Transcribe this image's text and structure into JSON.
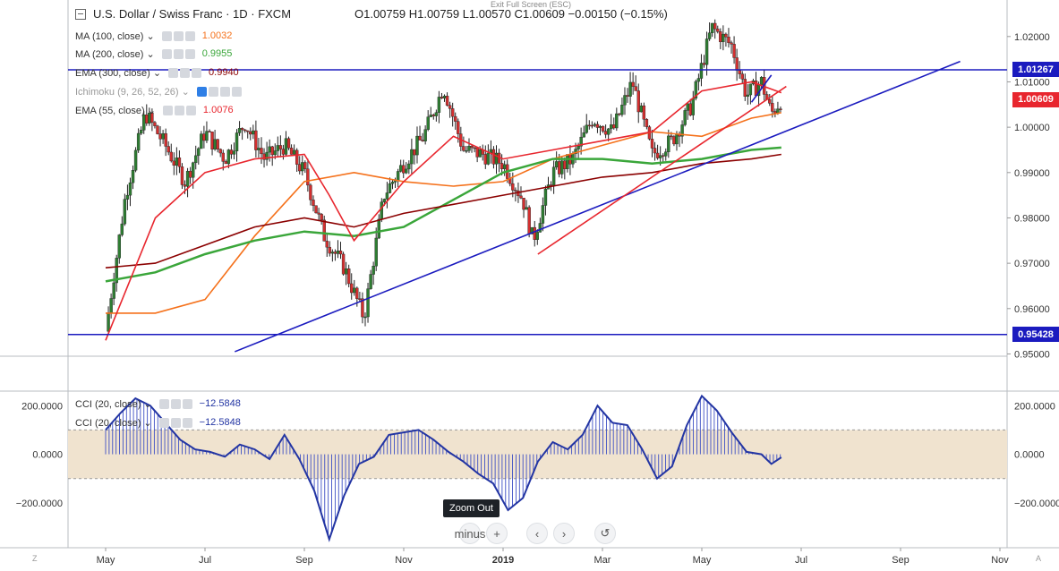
{
  "header": {
    "collapse_icon": "minus-box-icon",
    "symbol_title": "U.S. Dollar / Swiss Franc · 1D · FXCM",
    "ohlc": "O1.00759  H1.00759  L1.00570  C1.00609  −0.00150 (−0.15%)",
    "exit_fullscreen": "Exit Full Screen (ESC)"
  },
  "indicators": [
    {
      "label": "MA (100, close)",
      "value": "1.0032",
      "color": "#f5711b"
    },
    {
      "label": "MA (200, close)",
      "value": "0.9955",
      "color": "#3aa63a"
    },
    {
      "label": "EMA (300, close)",
      "value": "0.9940",
      "color": "#8b0000"
    },
    {
      "label": "Ichimoku (9, 26, 52, 26)",
      "value": "",
      "color": "#999999"
    },
    {
      "label": "EMA (55, close)",
      "value": "1.0076",
      "color": "#e8262e"
    }
  ],
  "cci_legend": [
    {
      "label": "CCI (20, close)",
      "value": "−12.5848"
    },
    {
      "label": "CCI (20, close)",
      "value": "−12.5848"
    }
  ],
  "price_tags": [
    {
      "text": "1.01267",
      "color": "#1b1bbf"
    },
    {
      "text": "1.00609",
      "color": "#e8262e"
    },
    {
      "text": "0.95428",
      "color": "#1b1bbf"
    }
  ],
  "toolbar": {
    "tooltip": "Zoom Out",
    "zoom_out_icon": "minus",
    "zoom_in_icon": "+",
    "scroll_left_icon": "‹",
    "scroll_right_icon": "›",
    "reset_icon": "↺"
  },
  "corners": {
    "left": "Z",
    "right": "A"
  },
  "chart_data": [
    {
      "type": "candlestick",
      "title": "U.S. Dollar / Swiss Franc, 1D, FXCM",
      "x_ticks": [
        "May",
        "Jul",
        "Sep",
        "Nov",
        "2019",
        "Mar",
        "May",
        "Jul",
        "Sep",
        "Nov"
      ],
      "y_ticks": [
        "1.02000",
        "1.01000",
        "1.00000",
        "0.99000",
        "0.98000",
        "0.97000",
        "0.96000",
        "0.95000"
      ],
      "ylim": [
        0.9495,
        1.0245
      ],
      "horizontal_levels": [
        1.01267,
        0.95428
      ],
      "last_close": 1.00609,
      "close_path": [
        {
          "m": 0,
          "c": 0.955
        },
        {
          "m": 0.4,
          "c": 0.985
        },
        {
          "m": 0.8,
          "c": 1.003
        },
        {
          "m": 1.2,
          "c": 0.996
        },
        {
          "m": 1.6,
          "c": 0.988
        },
        {
          "m": 2.0,
          "c": 0.999
        },
        {
          "m": 2.4,
          "c": 0.993
        },
        {
          "m": 2.8,
          "c": 1.001
        },
        {
          "m": 3.2,
          "c": 0.993
        },
        {
          "m": 3.6,
          "c": 0.996
        },
        {
          "m": 4.0,
          "c": 0.99
        },
        {
          "m": 4.4,
          "c": 0.976
        },
        {
          "m": 4.8,
          "c": 0.969
        },
        {
          "m": 5.2,
          "c": 0.958
        },
        {
          "m": 5.6,
          "c": 0.985
        },
        {
          "m": 6.0,
          "c": 0.992
        },
        {
          "m": 6.4,
          "c": 0.998
        },
        {
          "m": 6.8,
          "c": 1.009
        },
        {
          "m": 7.2,
          "c": 0.995
        },
        {
          "m": 7.6,
          "c": 0.994
        },
        {
          "m": 8.0,
          "c": 0.992
        },
        {
          "m": 8.4,
          "c": 0.984
        },
        {
          "m": 8.6,
          "c": 0.975
        },
        {
          "m": 9.0,
          "c": 0.99
        },
        {
          "m": 9.4,
          "c": 0.993
        },
        {
          "m": 9.8,
          "c": 1.002
        },
        {
          "m": 10.2,
          "c": 0.999
        },
        {
          "m": 10.6,
          "c": 1.01
        },
        {
          "m": 11.0,
          "c": 0.994
        },
        {
          "m": 11.4,
          "c": 0.997
        },
        {
          "m": 11.8,
          "c": 1.005
        },
        {
          "m": 12.2,
          "c": 1.022
        },
        {
          "m": 12.6,
          "c": 1.018
        },
        {
          "m": 12.9,
          "c": 1.007
        },
        {
          "m": 13.2,
          "c": 1.01
        },
        {
          "m": 13.4,
          "c": 1.003
        },
        {
          "m": 13.6,
          "c": 1.0061
        }
      ],
      "moving_averages": [
        {
          "name": "MA (100, close)",
          "color": "#f5711b",
          "points": [
            [
              0,
              0.959
            ],
            [
              1,
              0.959
            ],
            [
              2,
              0.962
            ],
            [
              3,
              0.976
            ],
            [
              4,
              0.988
            ],
            [
              5,
              0.99
            ],
            [
              6,
              0.988
            ],
            [
              7,
              0.987
            ],
            [
              8,
              0.988
            ],
            [
              9,
              0.993
            ],
            [
              10,
              0.996
            ],
            [
              11,
              0.999
            ],
            [
              12,
              0.998
            ],
            [
              13,
              1.002
            ],
            [
              13.6,
              1.0032
            ]
          ]
        },
        {
          "name": "MA (200, close)",
          "color": "#3aa63a",
          "points": [
            [
              0,
              0.966
            ],
            [
              1,
              0.968
            ],
            [
              2,
              0.972
            ],
            [
              3,
              0.975
            ],
            [
              4,
              0.977
            ],
            [
              5,
              0.976
            ],
            [
              6,
              0.978
            ],
            [
              7,
              0.984
            ],
            [
              8,
              0.99
            ],
            [
              9,
              0.993
            ],
            [
              10,
              0.993
            ],
            [
              11,
              0.992
            ],
            [
              12,
              0.993
            ],
            [
              13,
              0.995
            ],
            [
              13.6,
              0.9955
            ]
          ]
        },
        {
          "name": "EMA (300, close)",
          "color": "#8b0000",
          "points": [
            [
              0,
              0.969
            ],
            [
              1,
              0.97
            ],
            [
              2,
              0.974
            ],
            [
              3,
              0.978
            ],
            [
              4,
              0.98
            ],
            [
              5,
              0.978
            ],
            [
              6,
              0.981
            ],
            [
              7,
              0.983
            ],
            [
              8,
              0.985
            ],
            [
              9,
              0.987
            ],
            [
              10,
              0.989
            ],
            [
              11,
              0.99
            ],
            [
              12,
              0.992
            ],
            [
              13,
              0.993
            ],
            [
              13.6,
              0.994
            ]
          ]
        },
        {
          "name": "EMA (55, close)",
          "color": "#e8262e",
          "points": [
            [
              0,
              0.953
            ],
            [
              1,
              0.98
            ],
            [
              2,
              0.99
            ],
            [
              3,
              0.993
            ],
            [
              4,
              0.994
            ],
            [
              4.5,
              0.985
            ],
            [
              5,
              0.975
            ],
            [
              6,
              0.988
            ],
            [
              7,
              0.998
            ],
            [
              8,
              0.993
            ],
            [
              9,
              0.995
            ],
            [
              10,
              0.997
            ],
            [
              11,
              0.999
            ],
            [
              12,
              1.008
            ],
            [
              13,
              1.01
            ],
            [
              13.6,
              1.0076
            ]
          ]
        }
      ],
      "trendlines": [
        {
          "color": "#1b1bbf",
          "from": [
            2.6,
            0.9505
          ],
          "to": [
            17.2,
            1.0145
          ]
        },
        {
          "color": "#e8262e",
          "from": [
            8.7,
            0.972
          ],
          "to": [
            13.7,
            1.009
          ]
        },
        {
          "color": "#1b1bbf",
          "from": [
            13.0,
            1.0055
          ],
          "to": [
            13.4,
            1.0115
          ]
        }
      ]
    },
    {
      "type": "line",
      "title": "CCI (20, close)",
      "y_ticks": [
        "200.0000",
        "0.0000",
        "−200.0000"
      ],
      "ylim": [
        -370,
        260
      ],
      "band": [
        -100,
        100
      ],
      "last_value": -12.5848,
      "color": "#2335a3",
      "x": [
        0,
        0.3,
        0.6,
        0.9,
        1.2,
        1.5,
        1.8,
        2.1,
        2.4,
        2.7,
        3.0,
        3.3,
        3.6,
        3.9,
        4.2,
        4.5,
        4.8,
        5.1,
        5.4,
        5.7,
        6.0,
        6.3,
        6.6,
        6.9,
        7.2,
        7.5,
        7.8,
        8.1,
        8.4,
        8.7,
        9.0,
        9.3,
        9.6,
        9.9,
        10.2,
        10.5,
        10.8,
        11.1,
        11.4,
        11.7,
        12.0,
        12.3,
        12.6,
        12.9,
        13.2,
        13.4,
        13.6
      ],
      "values": [
        100,
        170,
        230,
        200,
        130,
        60,
        20,
        10,
        -10,
        40,
        20,
        -20,
        80,
        -20,
        -150,
        -350,
        -170,
        -40,
        -10,
        80,
        90,
        100,
        60,
        10,
        -30,
        -80,
        -120,
        -230,
        -180,
        -30,
        50,
        20,
        80,
        200,
        130,
        120,
        20,
        -100,
        -50,
        120,
        240,
        180,
        90,
        10,
        0,
        -40,
        -12.58
      ]
    }
  ]
}
